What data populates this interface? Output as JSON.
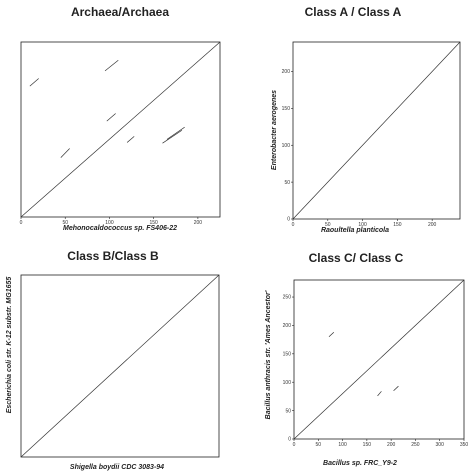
{
  "chart_data": [
    {
      "type": "scatter",
      "title": "Archaea/Archaea",
      "xlabel": "Mehonocaldococcus sp. FS406-22",
      "ylabel": "",
      "xlim": [
        0,
        225
      ],
      "ylim": [
        0,
        230
      ],
      "xticks": [
        0,
        50,
        100,
        150,
        200
      ],
      "yticks": [],
      "diagonal": true,
      "segments": [
        {
          "x": [
            10,
            20
          ],
          "y": [
            172,
            182
          ]
        },
        {
          "x": [
            95,
            110
          ],
          "y": [
            192,
            206
          ]
        },
        {
          "x": [
            45,
            55
          ],
          "y": [
            78,
            90
          ]
        },
        {
          "x": [
            97,
            107
          ],
          "y": [
            126,
            136
          ]
        },
        {
          "x": [
            120,
            128
          ],
          "y": [
            98,
            106
          ]
        },
        {
          "x": [
            160,
            182
          ],
          "y": [
            97,
            114
          ]
        },
        {
          "x": [
            165,
            185
          ],
          "y": [
            102,
            118
          ]
        }
      ]
    },
    {
      "type": "scatter",
      "title": "Class A / Class A",
      "xlabel": "Raoultella planticola",
      "ylabel": "Enterobacter aerogenes",
      "xlim": [
        0,
        240
      ],
      "ylim": [
        0,
        240
      ],
      "xticks": [
        0,
        50,
        100,
        150,
        200
      ],
      "yticks": [
        0,
        50,
        100,
        150,
        200
      ],
      "diagonal": true,
      "segments": []
    },
    {
      "type": "scatter",
      "title": "Class B/Class B",
      "xlabel": "Shigella boydii CDC 3083-94",
      "ylabel": "Escherichia coli str. K-12 substr. MG1655",
      "xlim": [
        0,
        230
      ],
      "ylim": [
        0,
        230
      ],
      "xticks": [],
      "yticks": [],
      "diagonal": true,
      "segments": []
    },
    {
      "type": "scatter",
      "title": "Class C/ Class C",
      "xlabel": "Bacillus sp. FRC_Y9-2",
      "ylabel": "Bacillus anthracis str. 'Ames Ancestor'",
      "xlim": [
        0,
        350
      ],
      "ylim": [
        0,
        280
      ],
      "xticks": [
        0,
        50,
        100,
        150,
        200,
        250,
        300,
        350
      ],
      "yticks": [
        0,
        50,
        100,
        150,
        200,
        250
      ],
      "diagonal": true,
      "segments": [
        {
          "x": [
            72,
            82
          ],
          "y": [
            180,
            188
          ]
        },
        {
          "x": [
            172,
            180
          ],
          "y": [
            76,
            84
          ]
        },
        {
          "x": [
            205,
            215
          ],
          "y": [
            85,
            93
          ]
        }
      ]
    }
  ]
}
